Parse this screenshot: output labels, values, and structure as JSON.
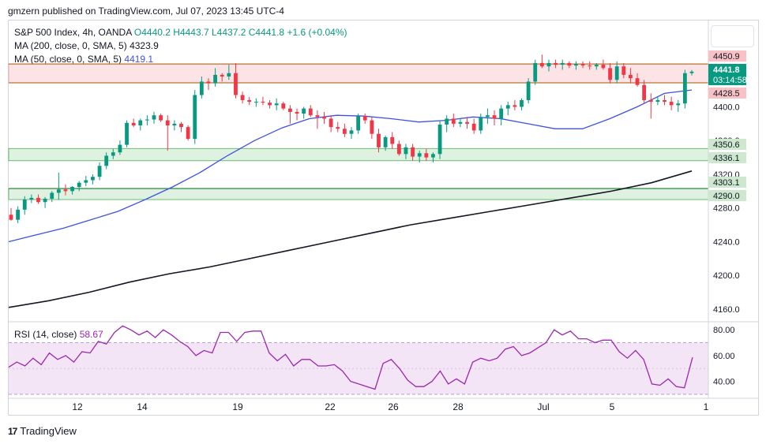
{
  "header": {
    "published": "gmzern published on TradingView.com, Jul 07, 2023 13:45 UTC-4"
  },
  "legend": {
    "symbol": "S&P 500 Index, 4h, OANDA",
    "ohlc": {
      "O": "O4440.2",
      "H": "H4443.7",
      "L": "L4437.2",
      "C": "C4441.8",
      "chg": "+1.6 (+0.04%)"
    },
    "ma200": {
      "label": "MA (200, close, 0, SMA, 5)",
      "value": "4323.9"
    },
    "ma50": {
      "label": "MA (50, close, 0, SMA, 5)",
      "value": "4419.1"
    }
  },
  "rsi_legend": {
    "label": "RSI (14, close)",
    "value": "58.67"
  },
  "footer": {
    "brand": "TradingView"
  },
  "colors": {
    "up": "#089981",
    "down": "#f23645",
    "ma50": "#3f51e0",
    "ma200": "#131722",
    "rsi": "#9c27b0",
    "zone_red": "#fce4e6",
    "zone_green": "#dff2e1"
  },
  "chart_data": [
    {
      "type": "candlestick",
      "x_tick_labels": [
        "12",
        "14",
        "19",
        "22",
        "26",
        "28",
        "Jul",
        "5",
        "1"
      ],
      "y_tick_labels": [
        "4400.0",
        "4360.0",
        "4320.0",
        "4280.0",
        "4240.0",
        "4200.0",
        "4160.0"
      ],
      "ylim": [
        4145,
        4480
      ],
      "price_tags": [
        {
          "value": "4450.9",
          "kind": "level-red"
        },
        {
          "value": "4441.8",
          "kind": "last"
        },
        {
          "value": "03:14:58",
          "kind": "countdown"
        },
        {
          "value": "4428.5",
          "kind": "level-red"
        },
        {
          "value": "4350.6",
          "kind": "level-green"
        },
        {
          "value": "4336.1",
          "kind": "level-green"
        },
        {
          "value": "4303.1",
          "kind": "level-green"
        },
        {
          "value": "4290.0",
          "kind": "level-green"
        }
      ],
      "zones": [
        {
          "from": 4428.5,
          "to": 4450.9,
          "color": "red"
        },
        {
          "from": 4336.1,
          "to": 4350.6,
          "color": "green"
        },
        {
          "from": 4290.0,
          "to": 4303.1,
          "color": "green"
        }
      ],
      "candles_ohlc": [
        [
          4272,
          4280,
          4265,
          4266
        ],
        [
          4266,
          4282,
          4262,
          4278
        ],
        [
          4278,
          4294,
          4272,
          4290
        ],
        [
          4290,
          4296,
          4286,
          4292
        ],
        [
          4292,
          4296,
          4285,
          4287
        ],
        [
          4287,
          4293,
          4280,
          4291
        ],
        [
          4291,
          4300,
          4287,
          4298
        ],
        [
          4298,
          4322,
          4290,
          4302
        ],
        [
          4302,
          4308,
          4295,
          4300
        ],
        [
          4300,
          4306,
          4296,
          4305
        ],
        [
          4305,
          4312,
          4300,
          4310
        ],
        [
          4310,
          4318,
          4306,
          4313
        ],
        [
          4313,
          4320,
          4308,
          4317
        ],
        [
          4317,
          4334,
          4313,
          4330
        ],
        [
          4330,
          4346,
          4326,
          4342
        ],
        [
          4342,
          4350,
          4338,
          4346
        ],
        [
          4346,
          4360,
          4343,
          4355
        ],
        [
          4355,
          4384,
          4352,
          4381
        ],
        [
          4381,
          4386,
          4376,
          4378
        ],
        [
          4378,
          4386,
          4372,
          4384
        ],
        [
          4384,
          4390,
          4378,
          4385
        ],
        [
          4385,
          4394,
          4380,
          4390
        ],
        [
          4390,
          4392,
          4382,
          4384
        ],
        [
          4384,
          4390,
          4348,
          4378
        ],
        [
          4378,
          4384,
          4372,
          4380
        ],
        [
          4380,
          4382,
          4370,
          4376
        ],
        [
          4376,
          4378,
          4360,
          4362
        ],
        [
          4362,
          4420,
          4356,
          4414
        ],
        [
          4414,
          4436,
          4410,
          4430
        ],
        [
          4430,
          4434,
          4420,
          4428
        ],
        [
          4428,
          4446,
          4424,
          4438
        ],
        [
          4438,
          4440,
          4430,
          4436
        ],
        [
          4436,
          4450,
          4432,
          4440
        ],
        [
          4440,
          4452,
          4410,
          4414
        ],
        [
          4414,
          4418,
          4404,
          4408
        ],
        [
          4408,
          4412,
          4402,
          4406
        ],
        [
          4406,
          4410,
          4400,
          4406
        ],
        [
          4406,
          4412,
          4402,
          4405
        ],
        [
          4405,
          4408,
          4398,
          4402
        ],
        [
          4402,
          4410,
          4396,
          4404
        ],
        [
          4404,
          4406,
          4396,
          4398
        ],
        [
          4398,
          4402,
          4380,
          4394
        ],
        [
          4394,
          4398,
          4384,
          4392
        ],
        [
          4392,
          4400,
          4386,
          4398
        ],
        [
          4398,
          4402,
          4388,
          4390
        ],
        [
          4390,
          4396,
          4374,
          4388
        ],
        [
          4388,
          4394,
          4380,
          4386
        ],
        [
          4386,
          4390,
          4370,
          4376
        ],
        [
          4376,
          4382,
          4370,
          4374
        ],
        [
          4374,
          4380,
          4364,
          4368
        ],
        [
          4368,
          4376,
          4362,
          4372
        ],
        [
          4372,
          4392,
          4368,
          4389
        ],
        [
          4389,
          4392,
          4380,
          4384
        ],
        [
          4384,
          4388,
          4362,
          4368
        ],
        [
          4368,
          4374,
          4346,
          4352
        ],
        [
          4352,
          4366,
          4348,
          4364
        ],
        [
          4364,
          4370,
          4350,
          4356
        ],
        [
          4356,
          4360,
          4342,
          4344
        ],
        [
          4344,
          4356,
          4338,
          4352
        ],
        [
          4352,
          4356,
          4336,
          4341
        ],
        [
          4341,
          4348,
          4334,
          4345
        ],
        [
          4345,
          4350,
          4336,
          4340
        ],
        [
          4340,
          4346,
          4334,
          4344
        ],
        [
          4344,
          4384,
          4338,
          4379
        ],
        [
          4379,
          4390,
          4370,
          4386
        ],
        [
          4386,
          4392,
          4376,
          4380
        ],
        [
          4380,
          4386,
          4376,
          4382
        ],
        [
          4382,
          4388,
          4374,
          4380
        ],
        [
          4380,
          4386,
          4368,
          4372
        ],
        [
          4372,
          4392,
          4368,
          4388
        ],
        [
          4388,
          4398,
          4380,
          4390
        ],
        [
          4390,
          4396,
          4378,
          4386
        ],
        [
          4386,
          4402,
          4378,
          4398
        ],
        [
          4398,
          4406,
          4390,
          4402
        ],
        [
          4402,
          4408,
          4396,
          4400
        ],
        [
          4400,
          4410,
          4396,
          4408
        ],
        [
          4408,
          4434,
          4404,
          4430
        ],
        [
          4430,
          4456,
          4426,
          4452
        ],
        [
          4452,
          4462,
          4446,
          4448
        ],
        [
          4448,
          4456,
          4442,
          4452
        ],
        [
          4452,
          4456,
          4446,
          4450
        ],
        [
          4450,
          4456,
          4444,
          4452
        ],
        [
          4452,
          4454,
          4446,
          4449
        ],
        [
          4449,
          4454,
          4444,
          4451
        ],
        [
          4451,
          4454,
          4446,
          4449
        ],
        [
          4449,
          4454,
          4444,
          4448
        ],
        [
          4448,
          4452,
          4444,
          4450
        ],
        [
          4450,
          4456,
          4444,
          4446
        ],
        [
          4446,
          4452,
          4428,
          4432
        ],
        [
          4432,
          4454,
          4428,
          4448
        ],
        [
          4448,
          4452,
          4434,
          4438
        ],
        [
          4438,
          4446,
          4428,
          4434
        ],
        [
          4434,
          4440,
          4424,
          4426
        ],
        [
          4426,
          4432,
          4404,
          4408
        ],
        [
          4408,
          4416,
          4386,
          4406
        ],
        [
          4406,
          4412,
          4402,
          4408
        ],
        [
          4408,
          4414,
          4402,
          4406
        ],
        [
          4406,
          4412,
          4396,
          4402
        ],
        [
          4402,
          4408,
          4394,
          4404
        ],
        [
          4404,
          4444,
          4398,
          4440
        ],
        [
          4440,
          4443.7,
          4437.2,
          4441.8
        ]
      ],
      "ma50": [
        4240,
        4248,
        4256,
        4266,
        4276,
        4290,
        4305,
        4322,
        4342,
        4360,
        4375,
        4386,
        4390,
        4389,
        4386,
        4382,
        4384,
        4388,
        4386,
        4380,
        4374,
        4374,
        4386,
        4400,
        4416,
        4420
      ],
      "ma200": [
        4162,
        4170,
        4180,
        4192,
        4202,
        4210,
        4220,
        4230,
        4240,
        4250,
        4260,
        4268,
        4276,
        4284,
        4292,
        4300,
        4310,
        4323.9
      ]
    },
    {
      "type": "line",
      "name": "RSI (14, close)",
      "y_tick_labels": [
        "80.00",
        "60.00",
        "40.00"
      ],
      "ylim": [
        30,
        85
      ],
      "band": [
        30,
        70
      ],
      "values": [
        51,
        55,
        52,
        58,
        53,
        62,
        57,
        60,
        55,
        63,
        62,
        71,
        69,
        78,
        83,
        80,
        76,
        79,
        74,
        80,
        76,
        71,
        67,
        60,
        64,
        62,
        78,
        78,
        71,
        78,
        79,
        79,
        62,
        56,
        61,
        52,
        57,
        57,
        52,
        52,
        53,
        48,
        40,
        38,
        36,
        34,
        54,
        57,
        50,
        41,
        36,
        36,
        40,
        48,
        38,
        42,
        38,
        55,
        58,
        56,
        58,
        65,
        67,
        60,
        62,
        66,
        70,
        80,
        76,
        79,
        73,
        73,
        70,
        72,
        72,
        63,
        58,
        64,
        57,
        38,
        37,
        42,
        36,
        35,
        58.67
      ]
    }
  ]
}
